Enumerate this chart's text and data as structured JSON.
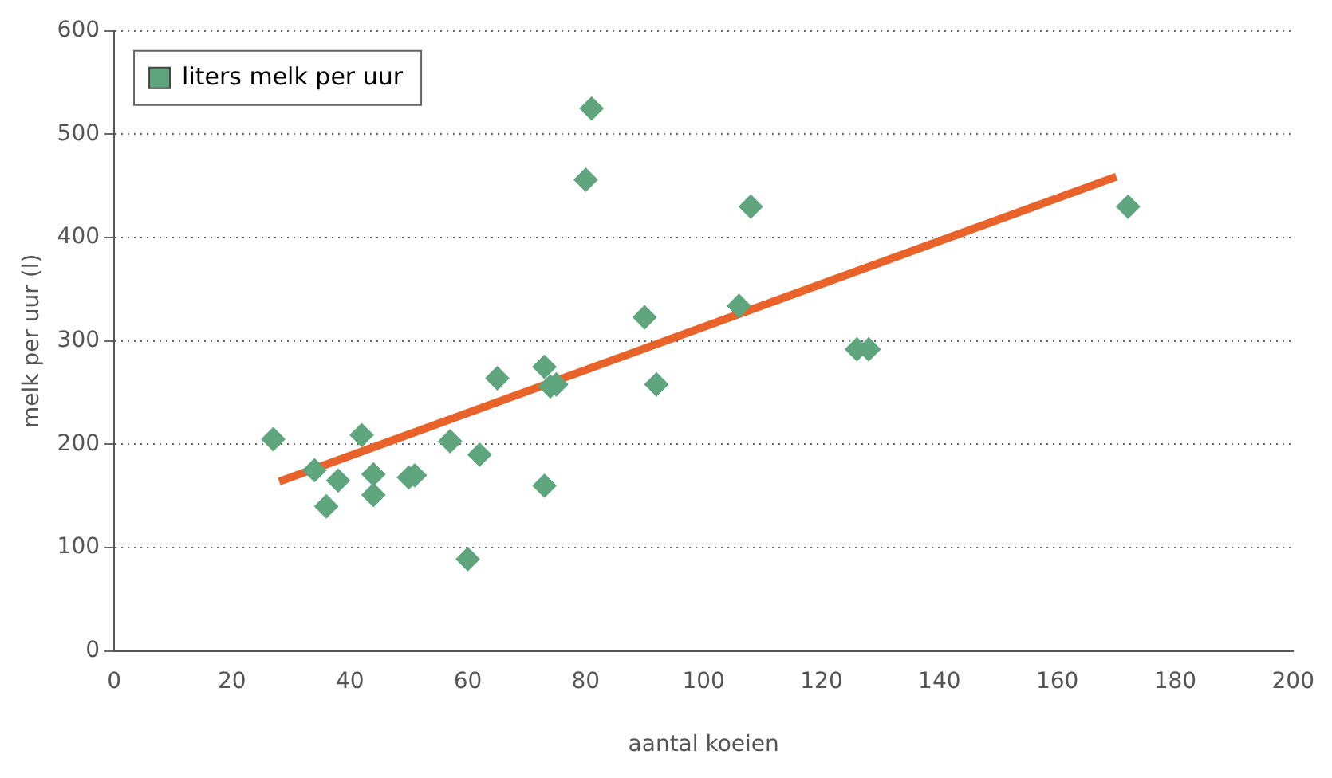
{
  "chart_data": {
    "type": "scatter",
    "xlabel": "aantal koeien",
    "ylabel": "melk per uur (l)",
    "xlim": [
      0,
      200
    ],
    "xticks": [
      0,
      20,
      40,
      60,
      80,
      100,
      120,
      140,
      160,
      180,
      200
    ],
    "ylim": [
      0,
      600
    ],
    "yticks": [
      0,
      100,
      200,
      300,
      400,
      500,
      600
    ],
    "grid": "y",
    "legend": "top left",
    "marker": "diamond",
    "series": [
      {
        "name": "liters melk per uur",
        "color": "#5fa57d",
        "x": [
          27,
          34,
          36,
          38,
          42,
          44,
          44,
          50,
          51,
          57,
          60,
          62,
          65,
          73,
          73,
          74,
          75,
          80,
          81,
          90,
          92,
          106,
          108,
          126,
          128,
          172
        ],
        "values": [
          205,
          175,
          140,
          165,
          209,
          171,
          151,
          168,
          170,
          203,
          89,
          190,
          264,
          160,
          275,
          256,
          258,
          456,
          525,
          323,
          258,
          334,
          430,
          292,
          292,
          430
        ]
      },
      {
        "type": "line",
        "marker": "none",
        "color": "#e8622a",
        "x": [
          28,
          170
        ],
        "values": [
          164,
          459
        ]
      }
    ]
  }
}
